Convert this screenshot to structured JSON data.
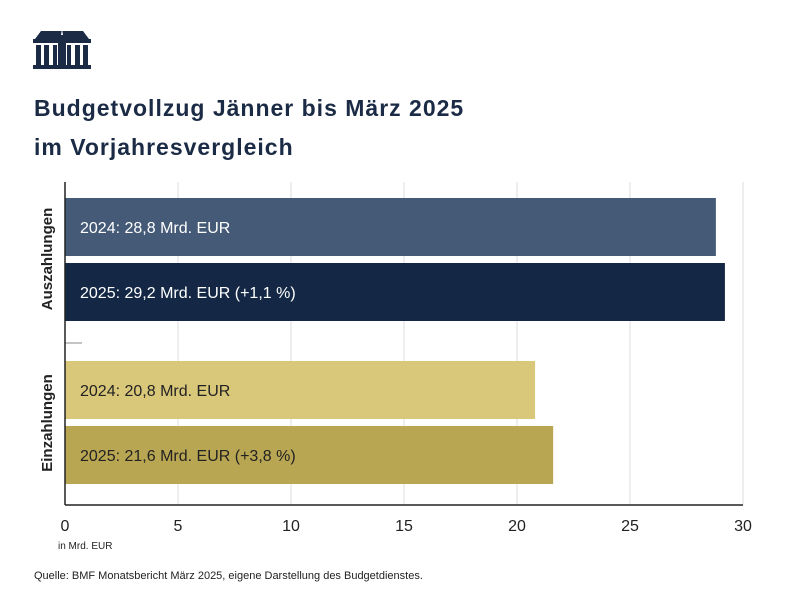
{
  "title_line1": "Budgetvollzug Jänner bis März 2025",
  "title_line2": "im Vorjahresvergleich",
  "source": "Quelle: BMF Monatsbericht März 2025, eigene Darstellung des Budgetdienstes.",
  "chart_data": {
    "type": "bar",
    "orientation": "horizontal",
    "xlabel": "in Mrd. EUR",
    "xlim": [
      0,
      30
    ],
    "xticks": [
      0,
      5,
      10,
      15,
      20,
      25,
      30
    ],
    "grid": true,
    "groups": [
      {
        "name": "Auszahlungen",
        "bars": [
          {
            "label": "2024: 28,8 Mrd. EUR",
            "value": 28.8,
            "color": "#455a77"
          },
          {
            "label": "2025: 29,2 Mrd. EUR (+1,1 %)",
            "value": 29.2,
            "color": "#142846"
          }
        ]
      },
      {
        "name": "Einzahlungen",
        "bars": [
          {
            "label": "2024: 20,8 Mrd. EUR",
            "value": 20.8,
            "color": "#d9c77a"
          },
          {
            "label": "2025: 21,6 Mrd. EUR (+3,8 %)",
            "value": 21.6,
            "color": "#b9a653"
          }
        ]
      }
    ]
  }
}
